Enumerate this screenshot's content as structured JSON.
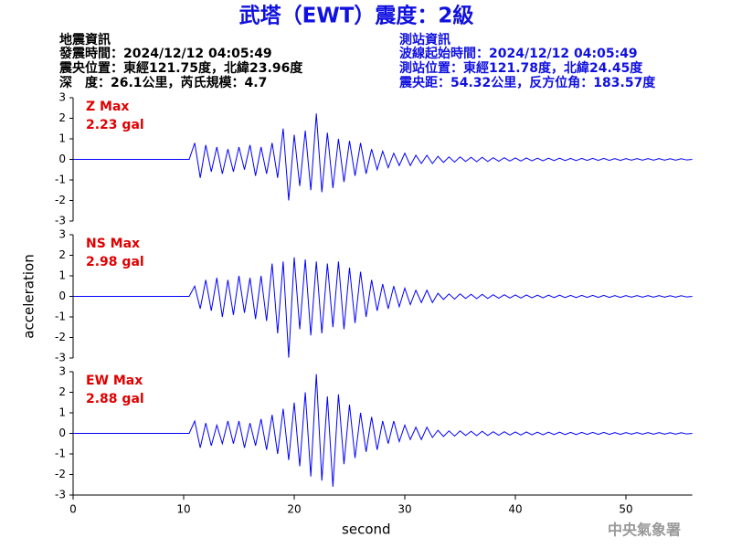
{
  "header": {
    "title": "武塔（EWT）震度：2級",
    "left": [
      "地震資訊",
      "發震時間：2024/12/12 04:05:49",
      "震央位置：東經121.75度，北緯23.96度",
      "深　度：26.1公里，芮氏規模：4.7"
    ],
    "right": [
      "測站資訊",
      "波線起始時間：2024/12/12 04:05:49",
      "測站位置：東經121.78度，北緯24.45度",
      "震央距：54.32公里，反方位角：183.57度"
    ],
    "footer": "中央氣象署"
  },
  "chart_data": [
    {
      "type": "line",
      "name": "Z Max",
      "max_label": "2.23 gal",
      "color": "#0000ff",
      "label_color": "#e00000",
      "xlim": [
        0,
        56
      ],
      "ylim": [
        -3,
        3
      ],
      "yticks": [
        -3,
        -2,
        -1,
        0,
        1,
        2,
        3
      ],
      "x": [
        0,
        10.5,
        11,
        11.5,
        12,
        12.5,
        13,
        13.5,
        14,
        14.5,
        15,
        15.5,
        16,
        16.5,
        17,
        17.5,
        18,
        18.5,
        19,
        19.5,
        20,
        20.5,
        21,
        21.5,
        22,
        22.5,
        23,
        23.5,
        24,
        24.5,
        25,
        25.5,
        26,
        26.5,
        27,
        27.5,
        28,
        28.5,
        29,
        29.5,
        30,
        30.5,
        31,
        31.5,
        32,
        32.5,
        33,
        33.5,
        34,
        34.5,
        35,
        35.5,
        36,
        36.5,
        37,
        37.5,
        38,
        38.5,
        39,
        39.5,
        40,
        40.5,
        41,
        41.5,
        42,
        42.5,
        43,
        43.5,
        44,
        44.5,
        45,
        45.5,
        46,
        46.5,
        47,
        47.5,
        48,
        48.5,
        49,
        49.5,
        50,
        50.5,
        51,
        51.5,
        52,
        52.5,
        53,
        53.5,
        54,
        54.5,
        55,
        55.5,
        56
      ],
      "values": [
        0,
        0,
        0.8,
        -0.9,
        0.7,
        -0.6,
        0.6,
        -0.7,
        0.5,
        -0.6,
        0.6,
        -0.5,
        0.7,
        -0.8,
        0.6,
        -0.7,
        0.8,
        -0.9,
        1.5,
        -2.0,
        1.2,
        -1.3,
        1.4,
        -1.5,
        2.23,
        -1.6,
        1.3,
        -1.4,
        1.0,
        -1.1,
        0.9,
        -0.8,
        0.8,
        -0.7,
        0.5,
        -0.5,
        0.4,
        -0.4,
        0.3,
        -0.3,
        0.3,
        -0.3,
        0.2,
        -0.2,
        0.2,
        -0.2,
        0.15,
        -0.15,
        0.12,
        -0.13,
        0.12,
        -0.1,
        0.1,
        -0.11,
        0.1,
        -0.1,
        0.08,
        -0.09,
        0.08,
        -0.08,
        0.07,
        -0.08,
        0.07,
        -0.07,
        0.06,
        -0.07,
        0.06,
        -0.06,
        0.06,
        -0.06,
        0.05,
        -0.06,
        0.05,
        -0.05,
        0.05,
        -0.05,
        0.05,
        -0.05,
        0.04,
        -0.05,
        0.04,
        -0.04,
        0.04,
        -0.04,
        0.04,
        -0.04,
        0.04,
        -0.04,
        0.03,
        -0.04,
        0.03,
        -0.03,
        0
      ]
    },
    {
      "type": "line",
      "name": "NS Max",
      "max_label": "2.98 gal",
      "color": "#0000ff",
      "label_color": "#e00000",
      "ylabel": "acceleration",
      "xlim": [
        0,
        56
      ],
      "ylim": [
        -3,
        3
      ],
      "yticks": [
        -3,
        -2,
        -1,
        0,
        1,
        2,
        3
      ],
      "x": [
        0,
        10.5,
        11,
        11.5,
        12,
        12.5,
        13,
        13.5,
        14,
        14.5,
        15,
        15.5,
        16,
        16.5,
        17,
        17.5,
        18,
        18.5,
        19,
        19.5,
        20,
        20.5,
        21,
        21.5,
        22,
        22.5,
        23,
        23.5,
        24,
        24.5,
        25,
        25.5,
        26,
        26.5,
        27,
        27.5,
        28,
        28.5,
        29,
        29.5,
        30,
        30.5,
        31,
        31.5,
        32,
        32.5,
        33,
        33.5,
        34,
        34.5,
        35,
        35.5,
        36,
        36.5,
        37,
        37.5,
        38,
        38.5,
        39,
        39.5,
        40,
        40.5,
        41,
        41.5,
        42,
        42.5,
        43,
        43.5,
        44,
        44.5,
        45,
        45.5,
        46,
        46.5,
        47,
        47.5,
        48,
        48.5,
        49,
        49.5,
        50,
        50.5,
        51,
        51.5,
        52,
        52.5,
        53,
        53.5,
        54,
        54.5,
        55,
        55.5,
        56
      ],
      "values": [
        0,
        0,
        0.5,
        -0.6,
        0.8,
        -0.7,
        0.9,
        -1.0,
        0.8,
        -0.9,
        1.0,
        -0.8,
        0.9,
        -1.1,
        1.0,
        -1.2,
        1.6,
        -1.8,
        1.7,
        -2.98,
        1.9,
        -1.6,
        1.8,
        -1.9,
        1.7,
        -1.8,
        1.6,
        -1.5,
        1.7,
        -1.6,
        1.4,
        -1.3,
        1.2,
        -1.0,
        0.8,
        -0.7,
        0.6,
        -0.6,
        0.5,
        -0.5,
        0.4,
        -0.4,
        0.3,
        -0.3,
        0.3,
        -0.3,
        0.15,
        -0.15,
        0.12,
        -0.13,
        0.12,
        -0.1,
        0.1,
        -0.11,
        0.1,
        -0.1,
        0.08,
        -0.09,
        0.08,
        -0.08,
        0.07,
        -0.08,
        0.07,
        -0.07,
        0.06,
        -0.07,
        0.06,
        -0.06,
        0.06,
        -0.06,
        0.05,
        -0.06,
        0.05,
        -0.05,
        0.05,
        -0.05,
        0.05,
        -0.05,
        0.04,
        -0.05,
        0.04,
        -0.04,
        0.04,
        -0.04,
        0.04,
        -0.04,
        0.04,
        -0.04,
        0.03,
        -0.04,
        0.03,
        -0.03,
        0
      ]
    },
    {
      "type": "line",
      "name": "EW Max",
      "max_label": "2.88 gal",
      "color": "#0000ff",
      "label_color": "#e00000",
      "xlabel": "second",
      "xlim": [
        0,
        56
      ],
      "ylim": [
        -3,
        3
      ],
      "yticks": [
        -3,
        -2,
        -1,
        0,
        1,
        2,
        3
      ],
      "xticks": [
        0,
        10,
        20,
        30,
        40,
        50
      ],
      "x": [
        0,
        10.5,
        11,
        11.5,
        12,
        12.5,
        13,
        13.5,
        14,
        14.5,
        15,
        15.5,
        16,
        16.5,
        17,
        17.5,
        18,
        18.5,
        19,
        19.5,
        20,
        20.5,
        21,
        21.5,
        22,
        22.5,
        23,
        23.5,
        24,
        24.5,
        25,
        25.5,
        26,
        26.5,
        27,
        27.5,
        28,
        28.5,
        29,
        29.5,
        30,
        30.5,
        31,
        31.5,
        32,
        32.5,
        33,
        33.5,
        34,
        34.5,
        35,
        35.5,
        36,
        36.5,
        37,
        37.5,
        38,
        38.5,
        39,
        39.5,
        40,
        40.5,
        41,
        41.5,
        42,
        42.5,
        43,
        43.5,
        44,
        44.5,
        45,
        45.5,
        46,
        46.5,
        47,
        47.5,
        48,
        48.5,
        49,
        49.5,
        50,
        50.5,
        51,
        51.5,
        52,
        52.5,
        53,
        53.5,
        54,
        54.5,
        55,
        55.5,
        56
      ],
      "values": [
        0,
        0,
        0.6,
        -0.7,
        0.5,
        -0.6,
        0.4,
        -0.5,
        0.6,
        -0.5,
        0.6,
        -0.7,
        0.5,
        -0.6,
        0.7,
        -0.8,
        0.9,
        -1.0,
        1.2,
        -1.3,
        1.5,
        -1.6,
        2.0,
        -2.1,
        2.88,
        -2.3,
        1.8,
        -2.6,
        1.9,
        -1.5,
        1.4,
        -1.2,
        1.0,
        -0.9,
        0.8,
        -0.8,
        0.6,
        -0.5,
        0.6,
        -0.4,
        0.4,
        -0.3,
        0.3,
        -0.3,
        0.3,
        -0.2,
        0.15,
        -0.15,
        0.12,
        -0.13,
        0.12,
        -0.1,
        0.1,
        -0.11,
        0.1,
        -0.1,
        0.08,
        -0.09,
        0.08,
        -0.08,
        0.07,
        -0.08,
        0.07,
        -0.07,
        0.06,
        -0.07,
        0.06,
        -0.06,
        0.06,
        -0.06,
        0.05,
        -0.06,
        0.05,
        -0.05,
        0.05,
        -0.05,
        0.05,
        -0.05,
        0.04,
        -0.05,
        0.04,
        -0.04,
        0.04,
        -0.04,
        0.04,
        -0.04,
        0.04,
        -0.04,
        0.03,
        -0.04,
        0.03,
        -0.03,
        0
      ]
    }
  ]
}
